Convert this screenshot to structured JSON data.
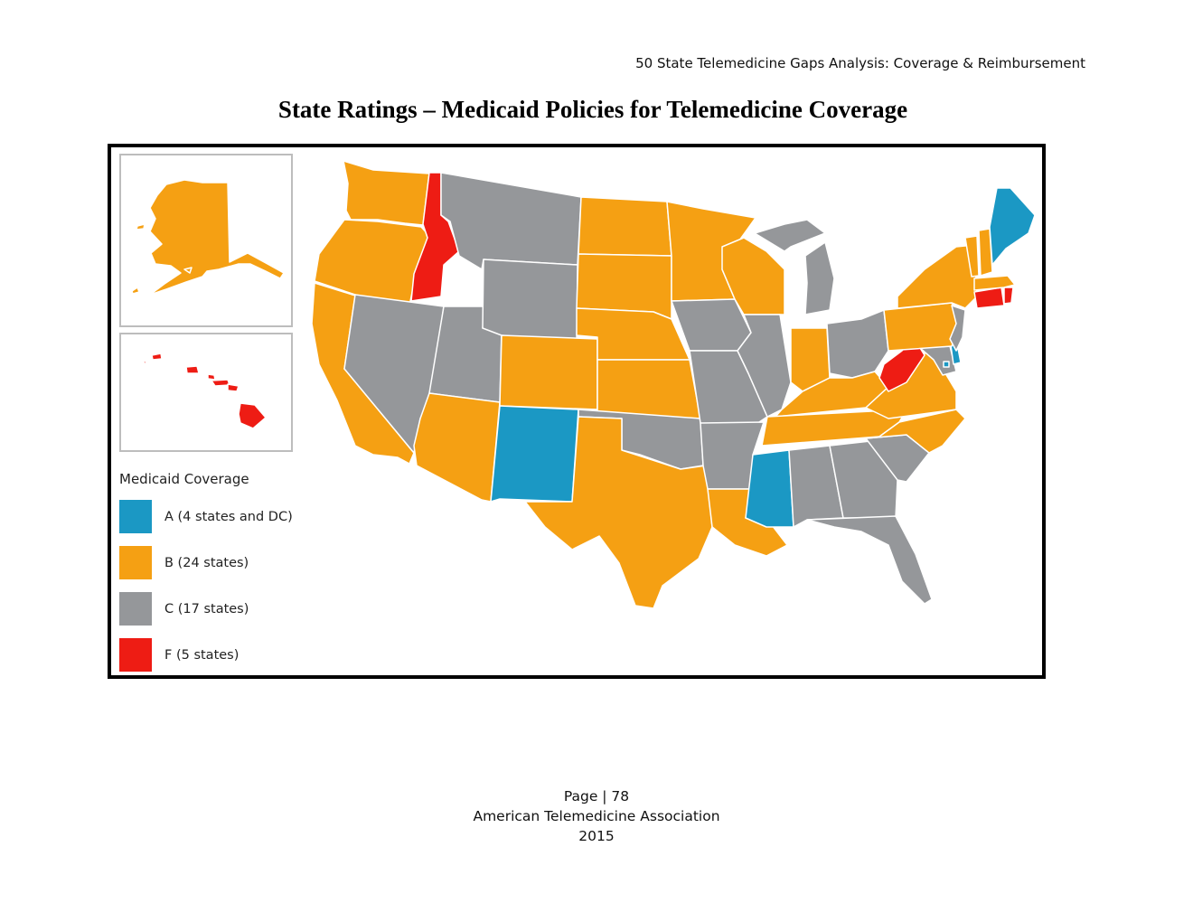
{
  "header": {
    "running_title": "50 State Telemedicine Gaps Analysis:  Coverage & Reimbursement"
  },
  "title": "State Ratings – Medicaid Policies for Telemedicine Coverage",
  "colors": {
    "A": "#1b98c4",
    "B": "#f5a013",
    "C": "#95979a",
    "F": "#ee1c14"
  },
  "legend": {
    "title": "Medicaid Coverage",
    "items": [
      {
        "grade": "A",
        "label": "A (4 states and DC)"
      },
      {
        "grade": "B",
        "label": "B (24 states)"
      },
      {
        "grade": "C",
        "label": "C (17 states)"
      },
      {
        "grade": "F",
        "label": "F (5 states)"
      }
    ]
  },
  "state_grades": {
    "WA": "B",
    "OR": "B",
    "CA": "B",
    "ID": "F",
    "NV": "C",
    "UT": "C",
    "AZ": "B",
    "MT": "C",
    "WY": "C",
    "CO": "B",
    "NM": "A",
    "ND": "B",
    "SD": "B",
    "NE": "B",
    "KS": "B",
    "OK": "C",
    "TX": "B",
    "MN": "B",
    "IA": "C",
    "MO": "C",
    "AR": "C",
    "LA": "B",
    "WI": "B",
    "IL": "C",
    "MI": "C",
    "IN": "B",
    "OH": "C",
    "KY": "B",
    "TN": "B",
    "MS": "A",
    "AL": "C",
    "GA": "C",
    "FL": "C",
    "SC": "C",
    "NC": "B",
    "VA": "B",
    "WV": "F",
    "MD": "C",
    "DE": "A",
    "DC": "A",
    "PA": "B",
    "NJ": "C",
    "NY": "B",
    "CT": "F",
    "RI": "F",
    "MA": "B",
    "VT": "B",
    "NH": "B",
    "ME": "A",
    "AK": "B",
    "HI": "F"
  },
  "footer": {
    "page": "Page | 78",
    "org": "American Telemedicine Association",
    "year": "2015"
  }
}
